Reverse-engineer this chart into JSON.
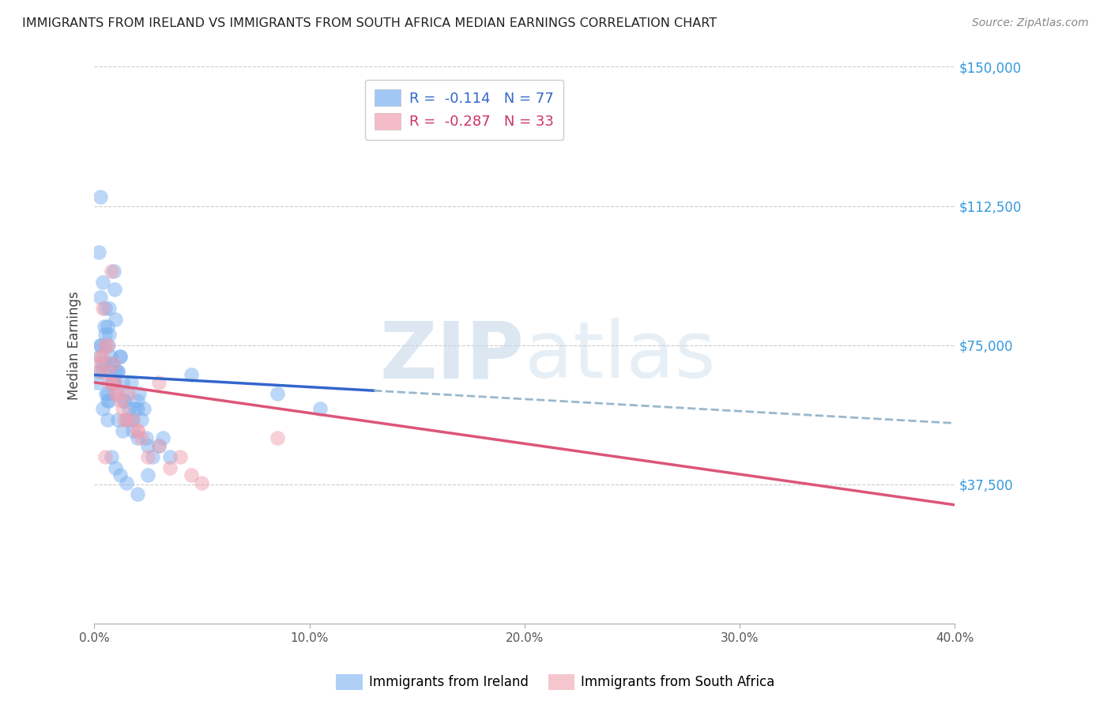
{
  "title": "IMMIGRANTS FROM IRELAND VS IMMIGRANTS FROM SOUTH AFRICA MEDIAN EARNINGS CORRELATION CHART",
  "source": "Source: ZipAtlas.com",
  "ylabel": "Median Earnings",
  "yticks": [
    0,
    37500,
    75000,
    112500,
    150000
  ],
  "ytick_labels": [
    "",
    "$37,500",
    "$75,000",
    "$112,500",
    "$150,000"
  ],
  "xlim": [
    0.0,
    40.0
  ],
  "ylim": [
    0,
    150000
  ],
  "ireland_R": -0.114,
  "ireland_N": 77,
  "sa_R": -0.287,
  "sa_N": 33,
  "ireland_color": "#7ab0f0",
  "sa_color": "#f0a0b0",
  "ireland_line_color": "#3366cc",
  "sa_line_color": "#dd5577",
  "dashed_line_color": "#99b8cc",
  "ireland_line_x0": 0.0,
  "ireland_line_y0": 67000,
  "ireland_line_x1": 40.0,
  "ireland_line_y1": 54000,
  "ireland_solid_end": 13.0,
  "sa_line_x0": 0.0,
  "sa_line_y0": 65000,
  "sa_line_x1": 40.0,
  "sa_line_y1": 32000,
  "ireland_scatter_x": [
    0.15,
    0.2,
    0.25,
    0.3,
    0.35,
    0.4,
    0.45,
    0.5,
    0.55,
    0.6,
    0.65,
    0.7,
    0.75,
    0.8,
    0.85,
    0.9,
    0.95,
    1.0,
    1.1,
    1.2,
    1.3,
    1.4,
    1.5,
    1.6,
    1.7,
    1.8,
    1.9,
    2.0,
    2.1,
    2.2,
    2.3,
    2.4,
    2.5,
    2.7,
    3.0,
    3.2,
    3.5,
    0.3,
    0.4,
    0.5,
    0.6,
    0.7,
    0.8,
    0.9,
    1.0,
    1.1,
    1.2,
    1.4,
    1.6,
    1.8,
    2.0,
    0.2,
    0.3,
    0.5,
    0.6,
    0.7,
    0.8,
    1.0,
    1.2,
    1.5,
    2.0,
    2.5,
    0.4,
    0.6,
    0.8,
    1.0,
    1.5,
    2.0,
    8.5,
    10.5,
    4.5,
    0.3,
    0.5,
    0.7,
    0.9,
    1.1,
    1.3
  ],
  "ireland_scatter_y": [
    65000,
    68000,
    72000,
    75000,
    70000,
    68000,
    80000,
    85000,
    62000,
    60000,
    75000,
    78000,
    72000,
    65000,
    70000,
    95000,
    90000,
    82000,
    68000,
    72000,
    65000,
    60000,
    62000,
    58000,
    65000,
    55000,
    58000,
    60000,
    62000,
    55000,
    58000,
    50000,
    48000,
    45000,
    48000,
    50000,
    45000,
    88000,
    92000,
    75000,
    80000,
    85000,
    70000,
    65000,
    62000,
    68000,
    72000,
    60000,
    55000,
    52000,
    50000,
    100000,
    115000,
    78000,
    55000,
    60000,
    45000,
    42000,
    40000,
    38000,
    35000,
    40000,
    58000,
    62000,
    65000,
    68000,
    55000,
    58000,
    62000,
    58000,
    67000,
    75000,
    70000,
    68000,
    65000,
    55000,
    52000
  ],
  "sa_scatter_x": [
    0.2,
    0.3,
    0.4,
    0.5,
    0.6,
    0.7,
    0.8,
    0.9,
    1.0,
    1.1,
    1.2,
    1.3,
    1.5,
    1.6,
    1.8,
    2.0,
    2.2,
    2.5,
    3.0,
    3.5,
    4.0,
    4.5,
    5.0,
    0.4,
    0.6,
    0.8,
    1.0,
    1.4,
    2.0,
    8.5,
    3.0,
    0.3,
    0.5
  ],
  "sa_scatter_y": [
    70000,
    68000,
    72000,
    75000,
    68000,
    65000,
    95000,
    70000,
    65000,
    62000,
    60000,
    58000,
    55000,
    62000,
    55000,
    52000,
    50000,
    45000,
    48000,
    42000,
    45000,
    40000,
    38000,
    85000,
    75000,
    65000,
    62000,
    55000,
    52000,
    50000,
    65000,
    72000,
    45000
  ]
}
